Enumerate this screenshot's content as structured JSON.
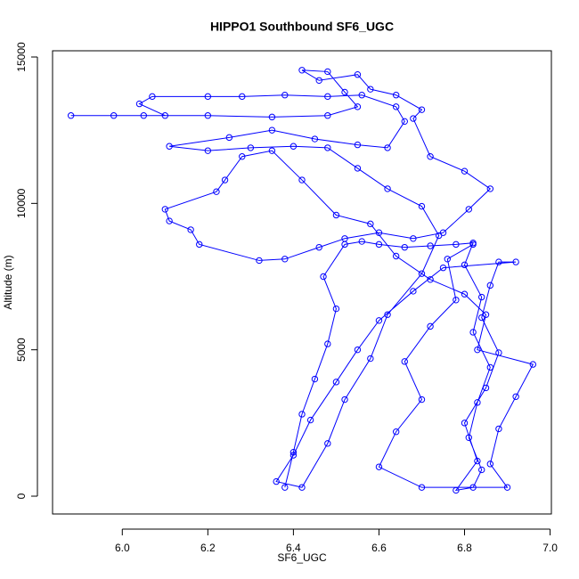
{
  "chart_data": {
    "type": "line",
    "title": "HIPPO1 Southbound SF6_UGC",
    "xlabel": "SF6_UGC",
    "ylabel": "Altitude (m)",
    "color": "#0000ff",
    "marker": "o",
    "xlim": [
      5.837,
      7.003
    ],
    "ylim": [
      -608,
      15213
    ],
    "xticks": [
      {
        "value": 6.0,
        "label": "6.0"
      },
      {
        "value": 6.2,
        "label": "6.2"
      },
      {
        "value": 6.4,
        "label": "6.4"
      },
      {
        "value": 6.6,
        "label": "6.6"
      },
      {
        "value": 6.8,
        "label": "6.8"
      },
      {
        "value": 7.0,
        "label": "7.0"
      }
    ],
    "yticks": [
      0,
      5000,
      10000,
      15000
    ],
    "x": [
      6.38,
      6.4,
      6.42,
      6.45,
      6.48,
      6.5,
      6.47,
      6.52,
      6.56,
      6.6,
      6.66,
      6.72,
      6.78,
      6.82,
      6.8,
      6.84,
      6.82,
      6.86,
      6.83,
      6.81,
      6.84,
      6.82,
      6.78,
      6.83,
      6.8,
      6.85,
      6.88,
      6.84,
      6.86,
      6.88,
      6.92,
      6.75,
      6.68,
      6.6,
      6.55,
      6.5,
      6.44,
      6.4,
      6.36,
      6.42,
      6.48,
      6.52,
      6.58,
      6.62,
      6.7,
      6.74,
      6.7,
      6.62,
      6.55,
      6.48,
      6.4,
      6.3,
      6.2,
      6.11,
      6.25,
      6.35,
      6.45,
      6.55,
      6.62,
      6.66,
      6.64,
      6.56,
      6.48,
      6.38,
      6.28,
      6.2,
      6.07,
      6.04,
      6.1,
      5.98,
      5.88,
      6.05,
      6.2,
      6.35,
      6.48,
      6.55,
      6.52,
      6.48,
      6.42,
      6.46,
      6.55,
      6.58,
      6.64,
      6.7,
      6.68,
      6.72,
      6.8,
      6.86,
      6.81,
      6.75,
      6.68,
      6.6,
      6.52,
      6.46,
      6.38,
      6.32,
      6.18,
      6.16,
      6.11,
      6.1,
      6.22,
      6.24,
      6.28,
      6.35,
      6.42,
      6.5,
      6.58,
      6.64,
      6.72,
      6.8,
      6.85,
      6.83,
      6.96,
      6.92,
      6.88,
      6.86,
      6.9,
      6.7,
      6.6,
      6.64,
      6.7,
      6.66,
      6.72,
      6.78,
      6.76,
      6.82
    ],
    "values": [
      300,
      1500,
      2800,
      4000,
      5200,
      6400,
      7500,
      8600,
      8700,
      8600,
      8500,
      8550,
      8600,
      8650,
      7900,
      6800,
      5600,
      4400,
      3200,
      2000,
      900,
      300,
      200,
      1200,
      2500,
      3700,
      4900,
      6100,
      7200,
      8000,
      8000,
      7800,
      7000,
      6000,
      5000,
      3900,
      2600,
      1400,
      500,
      300,
      1800,
      3300,
      4700,
      6200,
      7600,
      8900,
      9900,
      10500,
      11200,
      11900,
      11950,
      11900,
      11800,
      11950,
      12250,
      12500,
      12200,
      12000,
      11900,
      12800,
      13300,
      13700,
      13650,
      13700,
      13650,
      13650,
      13650,
      13400,
      13000,
      13000,
      13000,
      13000,
      13000,
      12950,
      13000,
      13300,
      13800,
      14500,
      14550,
      14200,
      14400,
      13900,
      13700,
      13200,
      12900,
      11600,
      11100,
      10500,
      9800,
      9000,
      8800,
      9000,
      8800,
      8500,
      8100,
      8050,
      8600,
      9100,
      9400,
      9800,
      10400,
      10800,
      11600,
      11800,
      10800,
      9600,
      9300,
      8200,
      7400,
      6900,
      6200,
      5000,
      4500,
      3400,
      2300,
      1100,
      300,
      300,
      1000,
      2200,
      3300,
      4600,
      5800,
      6700,
      8100,
      8600
    ]
  }
}
